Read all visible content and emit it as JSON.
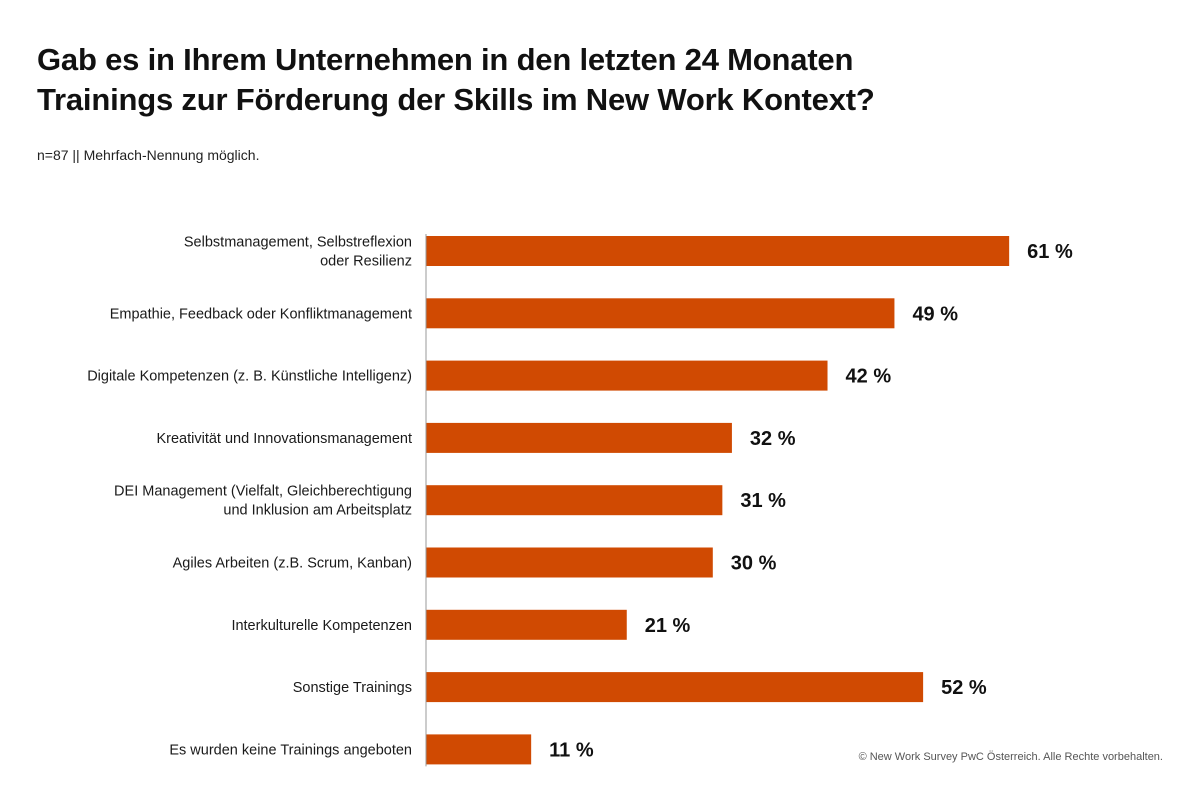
{
  "colors": {
    "bar": "#d04a02",
    "axis": "#999999"
  },
  "chart_data": {
    "type": "bar",
    "orientation": "horizontal",
    "title": "Gab es in Ihrem Unternehmen in den letzten 24 Monaten Trainings zur Förderung der Skills im New Work Kontext?",
    "title_lines": [
      "Gab es in Ihrem Unternehmen in den letzten 24 Monaten",
      "Trainings zur Förderung der Skills im New Work Kontext?"
    ],
    "subtitle": "n=87 || Mehrfach-Nennung möglich.",
    "xlabel": "",
    "ylabel": "",
    "xlim": [
      0,
      100
    ],
    "grid": false,
    "categories": [
      [
        "Selbstmanagement, Selbstreflexion",
        "oder Resilienz"
      ],
      [
        "Empathie, Feedback oder Konfliktmanagement"
      ],
      [
        "Digitale Kompetenzen (z. B. Künstliche Intelligenz)"
      ],
      [
        "Kreativität und Innovationsmanagement"
      ],
      [
        "DEI Management (Vielfalt, Gleichberechtigung",
        "und Inklusion am Arbeitsplatz"
      ],
      [
        "Agiles Arbeiten (z.B. Scrum, Kanban)"
      ],
      [
        "Interkulturelle Kompetenzen"
      ],
      [
        "Sonstige Trainings"
      ],
      [
        "Es wurden keine Trainings angeboten"
      ]
    ],
    "values": [
      61,
      49,
      42,
      32,
      31,
      30,
      21,
      52,
      11
    ],
    "value_labels": [
      "61 %",
      "49 %",
      "42 %",
      "32 %",
      "31 %",
      "30 %",
      "21 %",
      "52 %",
      "11 %"
    ]
  },
  "footer": "© New Work Survey PwC Österreich. Alle Rechte vorbehalten."
}
